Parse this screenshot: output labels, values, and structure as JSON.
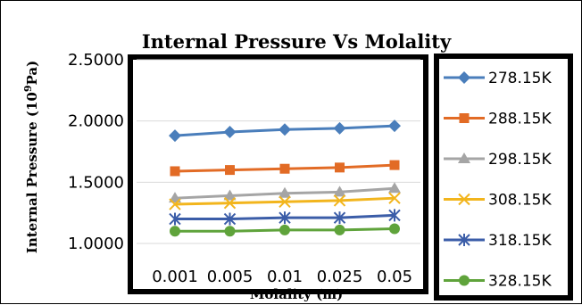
{
  "chart_data": {
    "type": "line",
    "title": "Internal Pressure Vs Molality",
    "xlabel": "Molality (m)",
    "ylabel_main": "Internal Pressure (10",
    "ylabel_sup": "9",
    "ylabel_tail": "Pa)",
    "categories": [
      "0.001",
      "0.005",
      "0.01",
      "0.025",
      "0.05"
    ],
    "yticks": [
      "2.5000",
      "2.0000",
      "1.5000",
      "1.0000"
    ],
    "ytick_values": [
      2.5,
      2.0,
      1.5,
      1.0
    ],
    "ylim": [
      1.0,
      2.5
    ],
    "grid": true,
    "legend_position": "right",
    "series": [
      {
        "name": "278.15K",
        "color": "#4A7EBB",
        "marker": "diamond",
        "values": [
          1.88,
          1.91,
          1.93,
          1.94,
          1.96
        ]
      },
      {
        "name": "288.15K",
        "color": "#E26B25",
        "marker": "square",
        "values": [
          1.59,
          1.6,
          1.61,
          1.62,
          1.64
        ]
      },
      {
        "name": "298.15K",
        "color": "#A5A5A5",
        "marker": "triangle",
        "values": [
          1.37,
          1.39,
          1.41,
          1.42,
          1.45
        ]
      },
      {
        "name": "308.15K",
        "color": "#F2B51D",
        "marker": "x",
        "values": [
          1.32,
          1.33,
          1.34,
          1.35,
          1.37
        ]
      },
      {
        "name": "318.15K",
        "color": "#3B5DA8",
        "marker": "star",
        "values": [
          1.2,
          1.2,
          1.21,
          1.21,
          1.23
        ]
      },
      {
        "name": "328.15K",
        "color": "#5FA33B",
        "marker": "circle",
        "values": [
          1.1,
          1.1,
          1.11,
          1.11,
          1.12
        ]
      }
    ]
  }
}
